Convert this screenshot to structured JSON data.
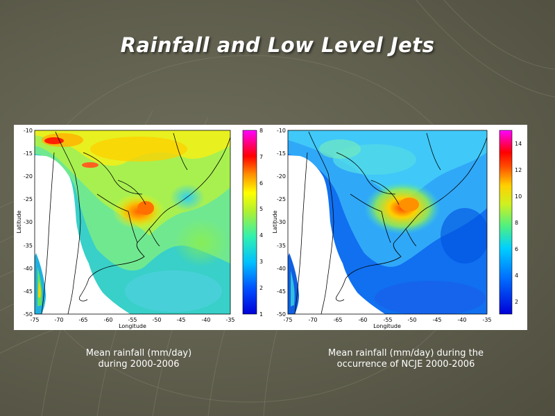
{
  "title": "Rainfall and Low Level Jets",
  "maps": [
    {
      "xlabel": "Longitude",
      "ylabel": "Latitude",
      "x_ticks": [
        "-75",
        "-70",
        "-65",
        "-60",
        "-55",
        "-50",
        "-45",
        "-40",
        "-35"
      ],
      "y_ticks": [
        "-10",
        "-15",
        "-20",
        "-25",
        "-30",
        "-35",
        "-40",
        "-45",
        "-50"
      ],
      "colorbar_ticks": [
        "1",
        "2",
        "3",
        "4",
        "5",
        "6",
        "7",
        "8"
      ],
      "caption_lines": [
        "Mean rainfall (mm/day)",
        "during 2000-2006"
      ]
    },
    {
      "xlabel": "Longitude",
      "ylabel": "Latitude",
      "x_ticks": [
        "-75",
        "-70",
        "-65",
        "-60",
        "-55",
        "-50",
        "-45",
        "-40",
        "-35"
      ],
      "y_ticks": [
        "-10",
        "-15",
        "-20",
        "-25",
        "-30",
        "-35",
        "-40",
        "-45",
        "-50"
      ],
      "colorbar_ticks": [
        "2",
        "4",
        "6",
        "8",
        "10",
        "12",
        "14"
      ],
      "caption_lines": [
        "Mean rainfall (mm/day) during the",
        "occurrence of NCJE 2000-2006"
      ]
    }
  ],
  "colors": {
    "background": "#5f5e4d",
    "title": "#ffffff",
    "caption": "#ffffff"
  }
}
